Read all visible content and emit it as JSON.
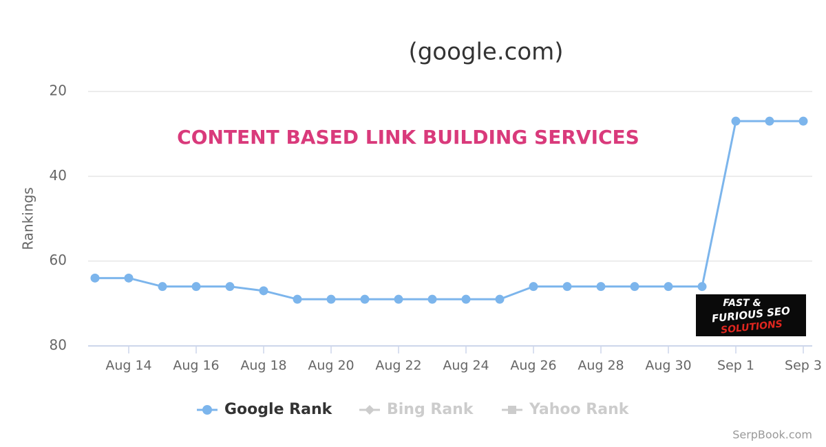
{
  "chart_data": {
    "type": "line",
    "title": "(google.com)",
    "annotation": "CONTENT BASED LINK BUILDING SERVICES",
    "logo": [
      "FAST &",
      "FURIOUS SEO",
      "SOLUTIONS"
    ],
    "credit": "SerpBook.com",
    "y_label": "Rankings",
    "categories": [
      null,
      "Aug 14",
      null,
      "Aug 16",
      null,
      "Aug 18",
      null,
      "Aug 20",
      null,
      "Aug 22",
      null,
      "Aug 24",
      null,
      "Aug 26",
      null,
      "Aug 28",
      null,
      "Aug 30",
      null,
      "Sep 1",
      null,
      "Sep 3"
    ],
    "series": [
      {
        "name": "Google Rank",
        "color": "#7cb5ec",
        "marker": "circle",
        "visible": true,
        "values": [
          64,
          64,
          66,
          66,
          66,
          67,
          69,
          69,
          69,
          69,
          69,
          69,
          69,
          66,
          66,
          66,
          66,
          66,
          66,
          27,
          27,
          27
        ]
      },
      {
        "name": "Bing Rank",
        "color": "#cccccc",
        "marker": "diamond",
        "visible": false
      },
      {
        "name": "Yahoo Rank",
        "color": "#cccccc",
        "marker": "square",
        "visible": false
      }
    ],
    "ylim": [
      20,
      80
    ],
    "yticks": [
      20,
      40,
      60,
      80
    ],
    "reversed": true,
    "grid": true
  }
}
